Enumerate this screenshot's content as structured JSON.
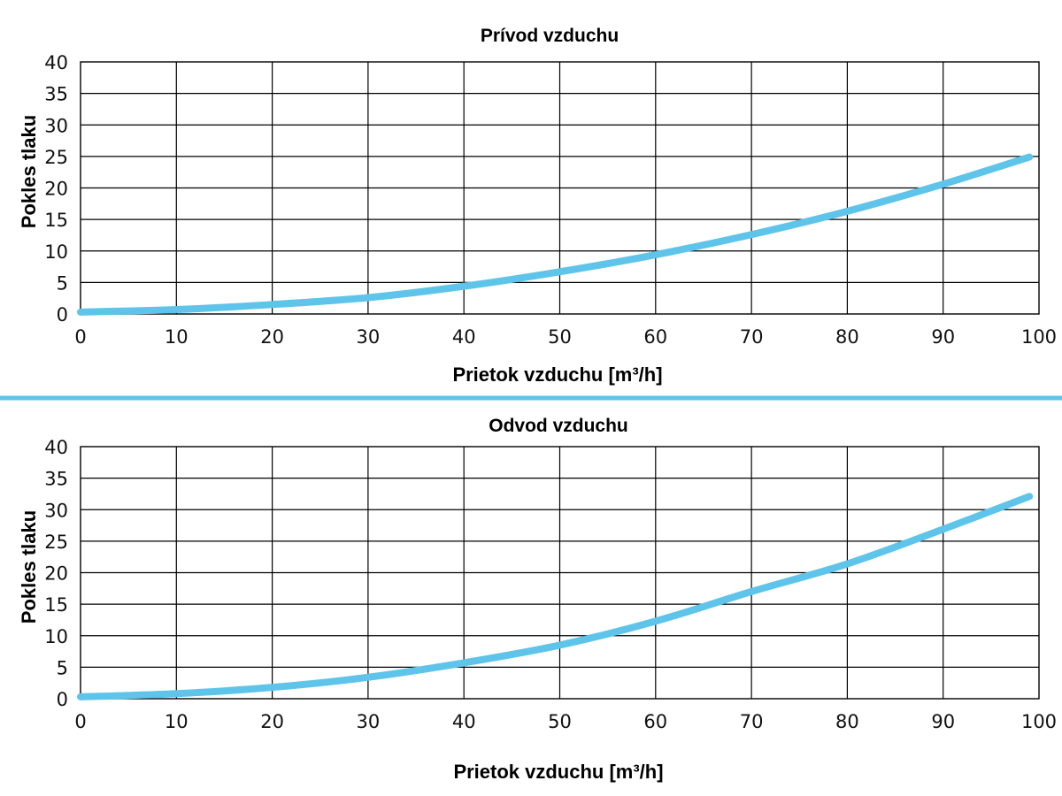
{
  "colors": {
    "curve": "#5ec4ea",
    "separator": "#5ec4ea",
    "grid": "#000000"
  },
  "chart_data": [
    {
      "type": "line",
      "title": "Prívod vzduchu",
      "xlabel": "Prietok vzduchu [m³/h]",
      "ylabel": "Pokles tlaku",
      "xlim": [
        0,
        100
      ],
      "ylim": [
        0,
        40
      ],
      "x_ticks": [
        "0",
        "10",
        "20",
        "30",
        "40",
        "50",
        "60",
        "70",
        "80",
        "90",
        "100"
      ],
      "y_ticks": [
        "0",
        "5",
        "10",
        "15",
        "20",
        "25",
        "30",
        "35",
        "40"
      ],
      "grid": true,
      "series": [
        {
          "x": [
            0,
            10,
            20,
            30,
            40,
            50,
            60,
            70,
            80,
            90,
            99
          ],
          "y": [
            0.3,
            0.7,
            1.5,
            2.6,
            4.4,
            6.7,
            9.4,
            12.6,
            16.3,
            20.6,
            24.9
          ]
        }
      ]
    },
    {
      "type": "line",
      "title": "Odvod vzduchu",
      "xlabel": "Prietok vzduchu [m³/h]",
      "ylabel": "Pokles tlaku",
      "xlim": [
        0,
        100
      ],
      "ylim": [
        0,
        40
      ],
      "x_ticks": [
        "0",
        "10",
        "20",
        "30",
        "40",
        "50",
        "60",
        "70",
        "80",
        "90",
        "100"
      ],
      "y_ticks": [
        "0",
        "5",
        "10",
        "15",
        "20",
        "25",
        "30",
        "35",
        "40"
      ],
      "grid": true,
      "series": [
        {
          "x": [
            0,
            10,
            20,
            30,
            40,
            50,
            60,
            70,
            80,
            90,
            99
          ],
          "y": [
            0.3,
            0.8,
            1.8,
            3.4,
            5.7,
            8.5,
            12.3,
            17.0,
            21.4,
            26.9,
            32.1
          ]
        }
      ]
    }
  ]
}
